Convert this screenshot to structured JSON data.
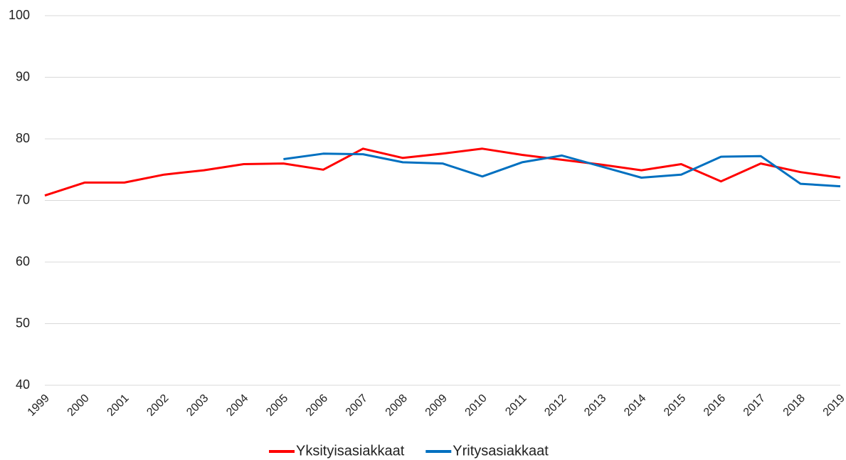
{
  "chart_data": {
    "type": "line",
    "categories": [
      "1999",
      "2000",
      "2001",
      "2002",
      "2003",
      "2004",
      "2005",
      "2006",
      "2007",
      "2008",
      "2009",
      "2010",
      "2011",
      "2012",
      "2013",
      "2014",
      "2015",
      "2016",
      "2017",
      "2018",
      "2019"
    ],
    "series": [
      {
        "name": "Yksityisasiakkaat",
        "color": "#ff0000",
        "values": [
          70.8,
          72.9,
          72.9,
          74.2,
          74.9,
          75.9,
          76.0,
          75.0,
          78.4,
          76.9,
          77.6,
          78.4,
          77.4,
          76.6,
          75.8,
          74.9,
          75.9,
          73.1,
          76.0,
          74.6,
          73.7
        ]
      },
      {
        "name": "Yritysasiakkaat",
        "color": "#0070c0",
        "values": [
          null,
          null,
          null,
          null,
          null,
          null,
          76.7,
          77.6,
          77.5,
          76.2,
          76.0,
          73.9,
          76.2,
          77.3,
          75.5,
          73.7,
          74.2,
          77.1,
          77.2,
          72.7,
          72.3
        ]
      }
    ],
    "ylim": [
      40,
      100
    ],
    "yticks": [
      40,
      50,
      60,
      70,
      80,
      90,
      100
    ],
    "grid": true,
    "legend": "bottom"
  }
}
